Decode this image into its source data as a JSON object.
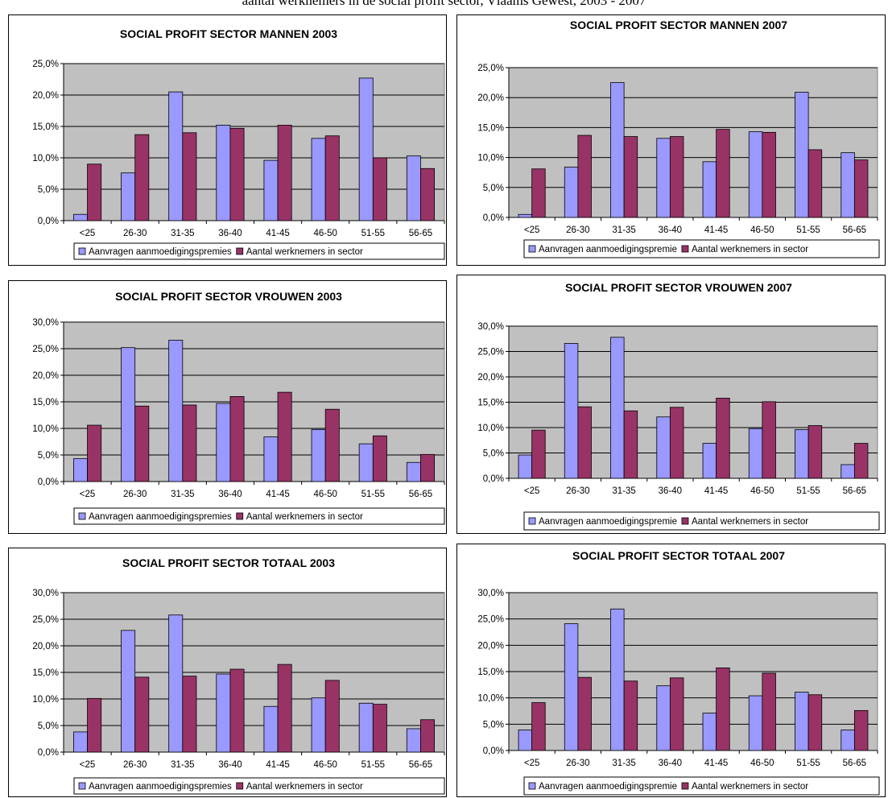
{
  "heading": "aantal werknemers in de social profit sector, Vlaams Gewest, 2003 - 2007",
  "colors": {
    "series1": "#9999ff",
    "series2": "#993366",
    "plot_bg": "#c0c0c0",
    "page_bg": "#ffffff"
  },
  "chart_data": [
    {
      "type": "bar",
      "title": "SOCIAL PROFIT SECTOR MANNEN 2003",
      "categories": [
        "<25",
        "26-30",
        "31-35",
        "36-40",
        "41-45",
        "46-50",
        "51-55",
        "56-65"
      ],
      "y_ticks": [
        "0,0%",
        "5,0%",
        "10,0%",
        "15,0%",
        "20,0%",
        "25,0%"
      ],
      "ylim": [
        0,
        25
      ],
      "grid": true,
      "legend_position": "bottom",
      "series": [
        {
          "name": "Aanvragen aanmoedigingspremies",
          "values": [
            1.0,
            7.6,
            20.5,
            15.2,
            9.6,
            13.1,
            22.7,
            10.3
          ]
        },
        {
          "name": "Aantal werknemers in sector",
          "values": [
            9.0,
            13.7,
            14.0,
            14.7,
            15.2,
            13.5,
            10.0,
            8.3
          ]
        }
      ]
    },
    {
      "type": "bar",
      "title": "SOCIAL PROFIT SECTOR MANNEN 2007",
      "categories": [
        "<25",
        "26-30",
        "31-35",
        "36-40",
        "41-45",
        "46-50",
        "51-55",
        "56-65"
      ],
      "y_ticks": [
        "0,0%",
        "5,0%",
        "10,0%",
        "15,0%",
        "20,0%",
        "25,0%"
      ],
      "ylim": [
        0,
        25
      ],
      "grid": true,
      "legend_position": "bottom",
      "series": [
        {
          "name": "Aanvragen aanmoedigingspremie",
          "values": [
            0.5,
            8.4,
            22.5,
            13.2,
            9.3,
            14.3,
            20.9,
            10.8
          ]
        },
        {
          "name": "Aantal werknemers in sector",
          "values": [
            8.1,
            13.7,
            13.5,
            13.5,
            14.7,
            14.2,
            11.3,
            9.6
          ]
        }
      ]
    },
    {
      "type": "bar",
      "title": "SOCIAL PROFIT SECTOR VROUWEN 2003",
      "categories": [
        "<25",
        "26-30",
        "31-35",
        "36-40",
        "41-45",
        "46-50",
        "51-55",
        "56-65"
      ],
      "y_ticks": [
        "0,0%",
        "5,0%",
        "10,0%",
        "15,0%",
        "20,0%",
        "25,0%",
        "30,0%"
      ],
      "ylim": [
        0,
        30
      ],
      "grid": true,
      "legend_position": "bottom",
      "series": [
        {
          "name": "Aanvragen aanmoedigingspremies",
          "values": [
            4.3,
            25.2,
            26.6,
            14.7,
            8.4,
            9.8,
            7.1,
            3.6
          ]
        },
        {
          "name": "Aantal werknemers in sector",
          "values": [
            10.6,
            14.2,
            14.4,
            16.0,
            16.8,
            13.6,
            8.6,
            5.1
          ]
        }
      ]
    },
    {
      "type": "bar",
      "title": "SOCIAL PROFIT SECTOR VROUWEN 2007",
      "categories": [
        "<25",
        "26-30",
        "31-35",
        "36-40",
        "41-45",
        "46-50",
        "51-55",
        "56-65"
      ],
      "y_ticks": [
        "0,0%",
        "5,0%",
        "10,0%",
        "15,0%",
        "20,0%",
        "25,0%",
        "30,0%"
      ],
      "ylim": [
        0,
        30
      ],
      "grid": true,
      "legend_position": "bottom",
      "series": [
        {
          "name": "Aanvragen aanmoedigingspremie",
          "values": [
            4.6,
            26.6,
            27.8,
            12.1,
            6.9,
            9.8,
            9.6,
            2.7
          ]
        },
        {
          "name": "Aantal werknemers in sector",
          "values": [
            9.5,
            14.1,
            13.3,
            14.0,
            15.8,
            15.1,
            10.4,
            6.9
          ]
        }
      ]
    },
    {
      "type": "bar",
      "title": "SOCIAL PROFIT SECTOR TOTAAL 2003",
      "categories": [
        "<25",
        "26-30",
        "31-35",
        "36-40",
        "41-45",
        "46-50",
        "51-55",
        "56-65"
      ],
      "y_ticks": [
        "0,0%",
        "5,0%",
        "10,0%",
        "15,0%",
        "20,0%",
        "25,0%",
        "30,0%"
      ],
      "ylim": [
        0,
        30
      ],
      "grid": true,
      "legend_position": "bottom",
      "series": [
        {
          "name": "Aanvragen aanmoedigingspremies",
          "values": [
            3.8,
            22.9,
            25.8,
            14.7,
            8.6,
            10.2,
            9.2,
            4.4
          ]
        },
        {
          "name": "Aantal werknemers in sector",
          "values": [
            10.1,
            14.1,
            14.3,
            15.6,
            16.5,
            13.5,
            9.0,
            6.1
          ]
        }
      ]
    },
    {
      "type": "bar",
      "title": "SOCIAL PROFIT SECTOR TOTAAL 2007",
      "categories": [
        "<25",
        "26-30",
        "31-35",
        "36-40",
        "41-45",
        "46-50",
        "51-55",
        "56-65"
      ],
      "y_ticks": [
        "0,0%",
        "5,0%",
        "10,0%",
        "15,0%",
        "20,0%",
        "25,0%",
        "30,0%"
      ],
      "ylim": [
        0,
        30
      ],
      "grid": true,
      "legend_position": "bottom",
      "series": [
        {
          "name": "Aanvragen aanmoedigingspremie",
          "values": [
            3.9,
            24.1,
            26.9,
            12.3,
            7.1,
            10.4,
            11.1,
            3.9
          ]
        },
        {
          "name": "Aantal werknemers in sector",
          "values": [
            9.1,
            13.9,
            13.2,
            13.8,
            15.7,
            14.7,
            10.6,
            7.6
          ]
        }
      ]
    }
  ]
}
